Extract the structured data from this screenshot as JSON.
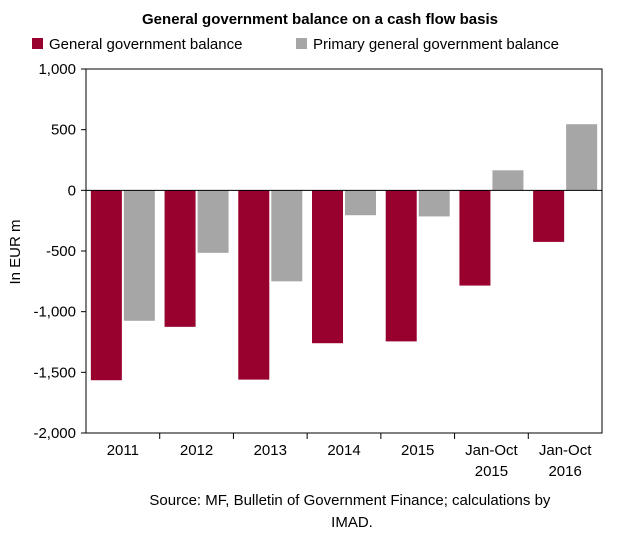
{
  "chart_data": {
    "type": "bar",
    "title": "General government balance on a cash flow basis",
    "xlabel": "",
    "ylabel": "In EUR m",
    "ylim": [
      -2000,
      1000
    ],
    "yticks": [
      1000,
      500,
      0,
      -500,
      -1000,
      -1500,
      -2000
    ],
    "ytick_labels": [
      "1,000",
      "500",
      "0",
      "-500",
      "-1,000",
      "-1,500",
      "-2,000"
    ],
    "categories": [
      [
        "2011"
      ],
      [
        "2012"
      ],
      [
        "2013"
      ],
      [
        "2014"
      ],
      [
        "2015"
      ],
      [
        "Jan-Oct",
        "2015"
      ],
      [
        "Jan-Oct",
        "2016"
      ]
    ],
    "series": [
      {
        "name": "General government balance",
        "color": "#98002e",
        "values": [
          -1565,
          -1125,
          -1560,
          -1260,
          -1245,
          -785,
          -425
        ]
      },
      {
        "name": "Primary general government balance",
        "color": "#a6a6a6",
        "values": [
          -1075,
          -515,
          -750,
          -205,
          -215,
          165,
          545
        ]
      }
    ],
    "grid": false,
    "legend_position": "top",
    "source_lines": [
      "Source: MF, Bulletin of Government Finance; calculations by",
      "IMAD."
    ]
  }
}
